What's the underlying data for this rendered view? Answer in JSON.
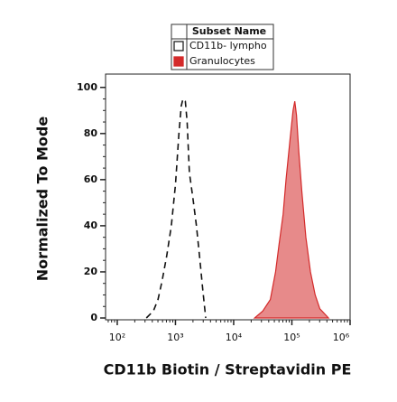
{
  "chart_data": {
    "type": "line",
    "xscale": "log",
    "x_label": "CD11b Biotin / Streptavidin PE",
    "y_label": "Normalized To Mode",
    "legend_title": "Subset Name",
    "xlim": [
      63,
      1000000
    ],
    "ylim": [
      0,
      105
    ],
    "xticks": [
      {
        "value": 100,
        "label": "10²"
      },
      {
        "value": 1000,
        "label": "10³"
      },
      {
        "value": 10000,
        "label": "10⁴"
      },
      {
        "value": 100000,
        "label": "10⁵"
      },
      {
        "value": 1000000,
        "label": "10⁶"
      }
    ],
    "yticks": [
      0,
      20,
      40,
      60,
      80,
      100
    ],
    "series": [
      {
        "name": "CD11b- lympho",
        "color": "#111111",
        "line_style": "dashed",
        "fill": false,
        "x": [
          316,
          417,
          501,
          589,
          708,
          851,
          1000,
          1148,
          1259,
          1349,
          1479,
          1585,
          1738,
          1995,
          2291,
          2630,
          2951,
          3311
        ],
        "values": [
          0,
          3,
          8,
          16,
          27,
          40,
          58,
          80,
          92,
          95,
          94,
          85,
          63,
          52,
          40,
          25,
          12,
          0
        ]
      },
      {
        "name": "Granulocytes",
        "color": "#d42a2a",
        "line_style": "solid",
        "fill": true,
        "x": [
          22909,
          31623,
          42658,
          52481,
          60256,
          70795,
          79433,
          93325,
          104713,
          112202,
          120226,
          131826,
          147911,
          173780,
          208930,
          251189,
          301995,
          426580
        ],
        "values": [
          0,
          3,
          8,
          20,
          32,
          45,
          60,
          78,
          90,
          94,
          88,
          72,
          55,
          35,
          20,
          10,
          4,
          0
        ]
      }
    ]
  }
}
